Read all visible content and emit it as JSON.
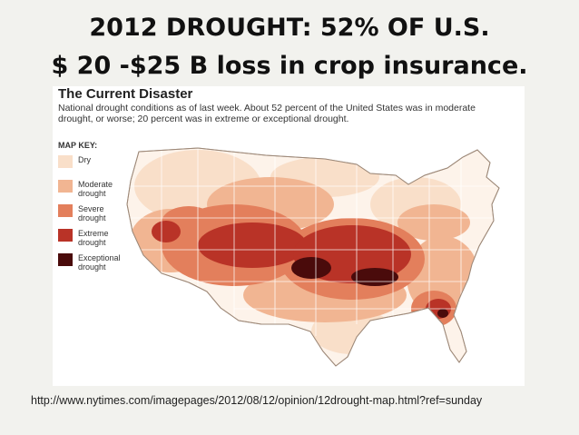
{
  "slide": {
    "title_line1": "2012 DROUGHT: 52% OF U.S.",
    "title_line2": "$ 20 -$25 B loss in crop insurance."
  },
  "figure": {
    "heading": "The Current Disaster",
    "description": "National drought conditions as of last week. About 52 percent of the United States was in moderate drought, or worse; 20 percent was in extreme or exceptional drought.",
    "stats": {
      "moderate_or_worse_percent": 52,
      "extreme_or_exceptional_percent": 20
    },
    "map_key": {
      "title": "MAP KEY:",
      "items": [
        {
          "label": "Dry",
          "color": "#f9dfc9"
        },
        {
          "label": "Moderate drought",
          "color": "#f1b592"
        },
        {
          "label": "Severe drought",
          "color": "#e37f5c"
        },
        {
          "label": "Extreme drought",
          "color": "#b93327"
        },
        {
          "label": "Exceptional drought",
          "color": "#4a0b0b"
        }
      ]
    }
  },
  "source": {
    "text": "http://www.nytimes.com/imagepages/2012/08/12/opinion/12drought-map.html?ref=sunday"
  }
}
